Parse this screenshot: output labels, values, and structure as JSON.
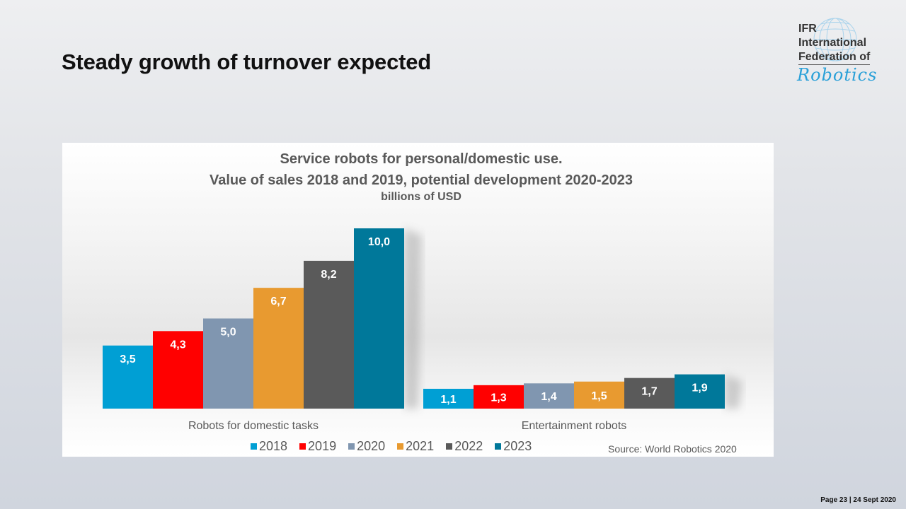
{
  "slide": {
    "title": "Steady growth of turnover expected",
    "footer": "Page 23 | 24 Sept 2020"
  },
  "logo": {
    "line1": "IFR",
    "line2": "International",
    "line3": "Federation of",
    "script": "Robotics",
    "color_script": "#2aa0d8"
  },
  "chart_data": {
    "type": "bar",
    "title": "Service robots for personal/domestic use.",
    "subtitle": "Value of sales 2018 and 2019, potential development 2020-2023",
    "unit_label": "billions of USD",
    "xlabel": "",
    "ylabel": "",
    "ylim": [
      0,
      10
    ],
    "grid": false,
    "legend_position": "bottom",
    "categories": [
      "Robots for domestic tasks",
      "Entertainment robots"
    ],
    "series": [
      {
        "name": "2018",
        "color": "#009fd4",
        "values": [
          3.5,
          1.1
        ],
        "labels": [
          "3,5",
          "1,1"
        ]
      },
      {
        "name": "2019",
        "color": "#ff0000",
        "values": [
          4.3,
          1.3
        ],
        "labels": [
          "4,3",
          "1,3"
        ]
      },
      {
        "name": "2020",
        "color": "#8096b0",
        "values": [
          5.0,
          1.4
        ],
        "labels": [
          "5,0",
          "1,4"
        ]
      },
      {
        "name": "2021",
        "color": "#e89a30",
        "values": [
          6.7,
          1.5
        ],
        "labels": [
          "6,7",
          "1,5"
        ]
      },
      {
        "name": "2022",
        "color": "#5a5a5a",
        "values": [
          8.2,
          1.7
        ],
        "labels": [
          "8,2",
          "1,7"
        ]
      },
      {
        "name": "2023",
        "color": "#00789a",
        "values": [
          10.0,
          1.9
        ],
        "labels": [
          "10,0",
          "1,9"
        ]
      }
    ],
    "source": "Source: World Robotics 2020"
  }
}
